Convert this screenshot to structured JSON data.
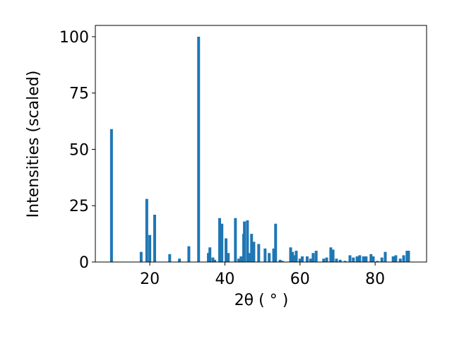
{
  "chart_data": {
    "type": "bar",
    "x_label": "2θ ( ° )",
    "y_label": "Intensities (scaled)",
    "color": "#1f77b4",
    "x": [
      9.8,
      17.7,
      19.2,
      20.0,
      21.3,
      25.3,
      27.9,
      30.4,
      33.0,
      35.6,
      36.0,
      36.8,
      37.3,
      38.6,
      39.2,
      40.3,
      40.9,
      42.8,
      43.7,
      44.3,
      45.0,
      45.2,
      46.0,
      46.6,
      47.1,
      47.7,
      49.0,
      50.7,
      51.8,
      53.0,
      53.5,
      54.7,
      55.3,
      57.5,
      58.0,
      58.5,
      59.0,
      60.0,
      60.6,
      61.9,
      62.8,
      63.5,
      64.3,
      66.3,
      67.1,
      68.2,
      68.8,
      69.7,
      70.7,
      72.0,
      73.3,
      74.2,
      75.2,
      75.9,
      76.9,
      77.6,
      78.9,
      79.5,
      80.6,
      81.8,
      82.7,
      84.8,
      85.5,
      86.7,
      87.6,
      88.5,
      88.9
    ],
    "values": [
      59,
      4.5,
      28,
      12,
      21,
      3.5,
      1.5,
      7,
      100,
      4,
      6.5,
      2,
      1,
      19.5,
      17,
      10.5,
      4,
      19.5,
      1.5,
      2.5,
      12.5,
      18,
      18.5,
      4,
      12.5,
      9,
      8,
      6,
      4,
      6,
      17,
      1,
      0.5,
      6.5,
      4.5,
      3,
      5,
      1.5,
      2.5,
      2.5,
      1.5,
      4,
      5,
      1.5,
      2,
      6.5,
      5.5,
      1.5,
      1,
      0.5,
      3,
      2,
      2.5,
      3,
      2.5,
      2.5,
      3.5,
      2.5,
      0.5,
      2,
      4.5,
      2.5,
      3,
      1.5,
      3,
      5,
      5
    ],
    "xlim": [
      5.5,
      93.7
    ],
    "ylim": [
      0,
      105
    ],
    "xticks": [
      20,
      40,
      60,
      80
    ],
    "yticks": [
      0,
      25,
      50,
      75,
      100
    ]
  }
}
